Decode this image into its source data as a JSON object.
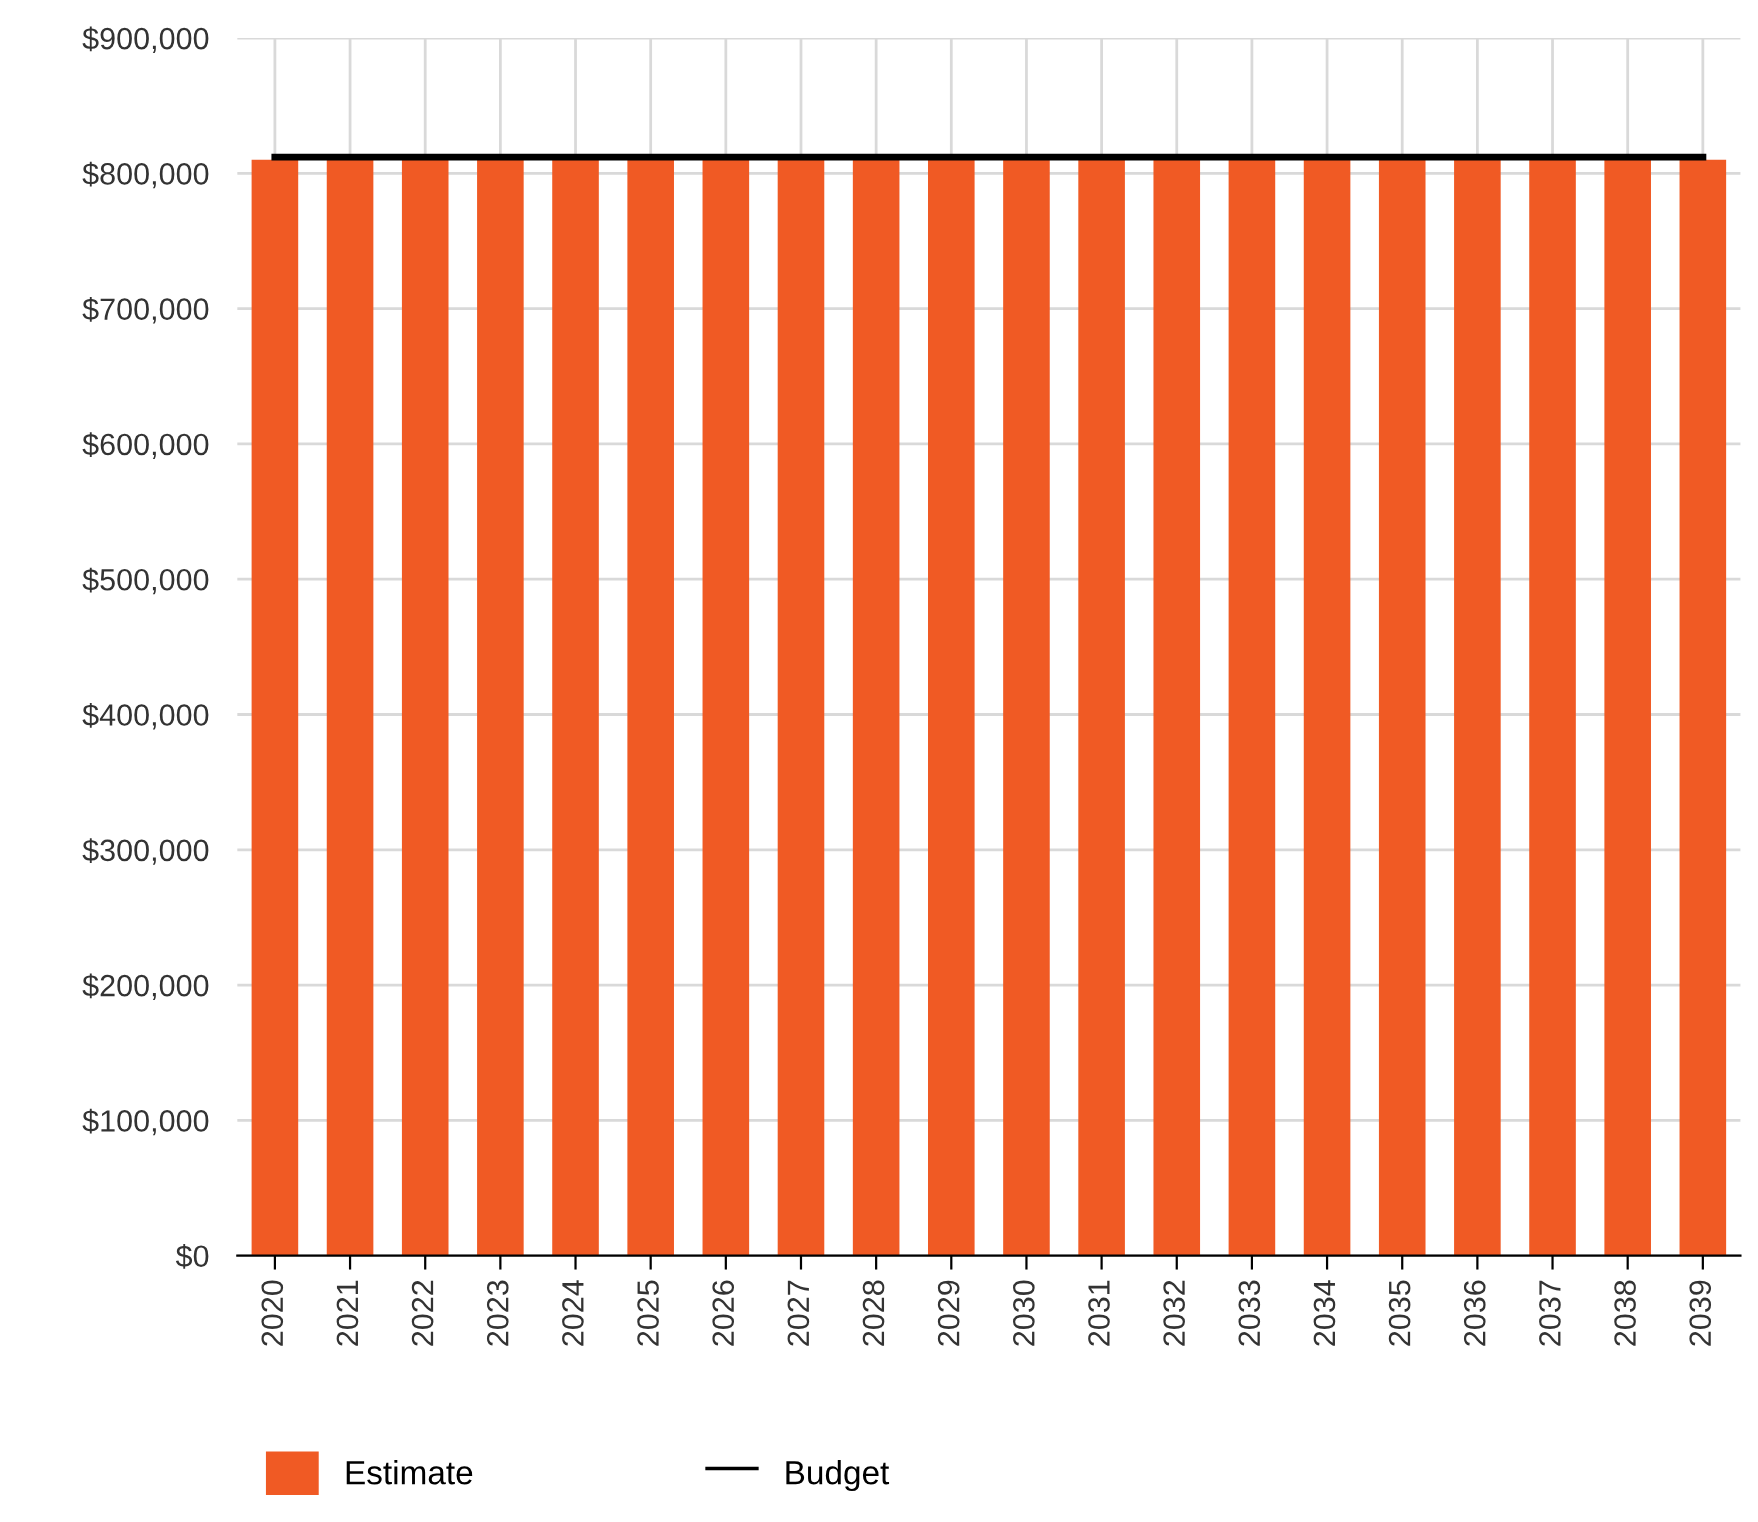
{
  "chart_data": {
    "type": "bar",
    "categories": [
      "2020",
      "2021",
      "2022",
      "2023",
      "2024",
      "2025",
      "2026",
      "2027",
      "2028",
      "2029",
      "2030",
      "2031",
      "2032",
      "2033",
      "2034",
      "2035",
      "2036",
      "2037",
      "2038",
      "2039"
    ],
    "series": [
      {
        "name": "Estimate",
        "color": "#f05a24",
        "values": [
          810000,
          810000,
          810000,
          810000,
          810000,
          810000,
          810000,
          810000,
          810000,
          810000,
          810000,
          810000,
          810000,
          810000,
          810000,
          810000,
          810000,
          810000,
          810000,
          810000
        ]
      },
      {
        "name": "Budget",
        "type": "line",
        "color": "#000000",
        "values": [
          812000,
          812000,
          812000,
          812000,
          812000,
          812000,
          812000,
          812000,
          812000,
          812000,
          812000,
          812000,
          812000,
          812000,
          812000,
          812000,
          812000,
          812000,
          812000,
          812000
        ]
      }
    ],
    "ylim": [
      0,
      900000
    ],
    "yticks": [
      {
        "value": 0,
        "label": "$0"
      },
      {
        "value": 100000,
        "label": "$100,000"
      },
      {
        "value": 200000,
        "label": "$200,000"
      },
      {
        "value": 300000,
        "label": "$300,000"
      },
      {
        "value": 400000,
        "label": "$400,000"
      },
      {
        "value": 500000,
        "label": "$500,000"
      },
      {
        "value": 600000,
        "label": "$600,000"
      },
      {
        "value": 700000,
        "label": "$700,000"
      },
      {
        "value": 800000,
        "label": "$800,000"
      },
      {
        "value": 900000,
        "label": "$900,000"
      }
    ],
    "grid": true,
    "legend": "bottom left",
    "marker": "none",
    "line_style": "solid"
  }
}
